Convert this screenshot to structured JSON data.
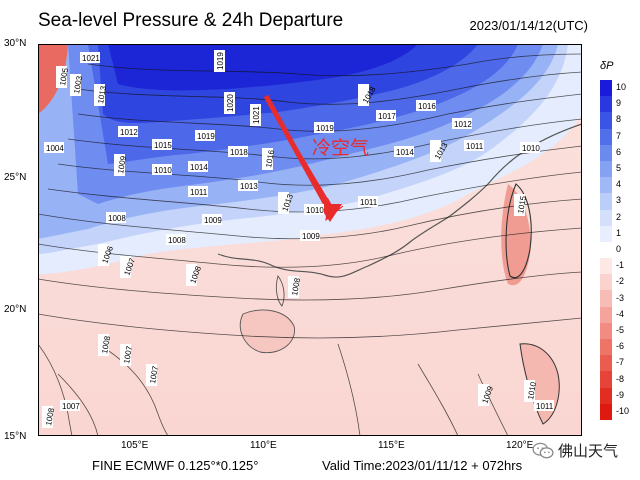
{
  "header": {
    "title": "Sea-level Pressure & 24h Departure",
    "timestamp": "2023/01/14/12(UTC)"
  },
  "footer": {
    "model": "FINE ECMWF 0.125°*0.125°",
    "valid_time": "Valid Time:2023/01/11/12 + 072hrs",
    "brand": "佛山天气"
  },
  "annotation": {
    "text": "冷空气"
  },
  "axes": {
    "lat_ticks": [
      "30°N",
      "25°N",
      "20°N",
      "15°N"
    ],
    "lon_ticks": [
      "105°E",
      "110°E",
      "115°E",
      "120°E"
    ]
  },
  "colorbar": {
    "title": "δP",
    "labels": [
      "10",
      "9",
      "8",
      "7",
      "6",
      "5",
      "4",
      "3",
      "2",
      "1",
      "0",
      "-1",
      "-2",
      "-3",
      "-4",
      "-5",
      "-6",
      "-7",
      "-8",
      "-9",
      "-10"
    ],
    "colors": [
      "#1a1adb",
      "#2a38e0",
      "#3a55e6",
      "#5070ea",
      "#6a8aee",
      "#85a2f2",
      "#a0b8f6",
      "#bbcdf9",
      "#d4e0fb",
      "#e8eefd",
      "#ffffff",
      "#fde8e6",
      "#fbd2ce",
      "#f8bcb6",
      "#f5a49c",
      "#f28c82",
      "#ee7468",
      "#ea5c50",
      "#e64438",
      "#e22e22",
      "#de1a10"
    ]
  },
  "isobars": [
    "1021",
    "1019",
    "1020",
    "1021",
    "1018",
    "1005",
    "1003",
    "1013",
    "1012",
    "1015",
    "1019",
    "1018",
    "1019",
    "1017",
    "1016",
    "1012",
    "1004",
    "1009",
    "1010",
    "1014",
    "1013",
    "1016",
    "1014",
    "1013",
    "1011",
    "1011",
    "1010",
    "1011",
    "1013",
    "1009",
    "1010",
    "1008",
    "1006",
    "1007",
    "1008",
    "1008",
    "1009",
    "1007",
    "1008",
    "1008",
    "1007",
    "1009",
    "1010",
    "1011",
    "1007",
    "1008",
    "1015"
  ]
}
